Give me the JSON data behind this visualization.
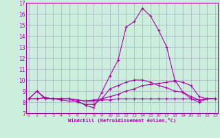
{
  "title": "",
  "xlabel": "Windchill (Refroidissement éolien,°C)",
  "bg_color": "#cceedd",
  "grid_color": "#aaaacc",
  "line_color": "#aa00aa",
  "x_min": 0,
  "x_max": 23,
  "y_min": 7,
  "y_max": 17,
  "series": [
    [
      8.3,
      9.0,
      8.3,
      8.3,
      8.2,
      8.1,
      8.1,
      7.7,
      7.5,
      8.9,
      10.4,
      11.8,
      14.8,
      15.3,
      16.5,
      15.8,
      14.5,
      13.0,
      10.0,
      8.9,
      8.3,
      8.0,
      8.3,
      8.3
    ],
    [
      8.3,
      9.0,
      8.4,
      8.3,
      8.3,
      8.3,
      8.0,
      7.8,
      7.8,
      8.3,
      9.2,
      9.5,
      9.8,
      10.0,
      10.0,
      9.8,
      9.5,
      9.3,
      9.0,
      8.9,
      8.5,
      8.2,
      8.3,
      8.3
    ],
    [
      8.3,
      8.3,
      8.4,
      8.3,
      8.3,
      8.3,
      8.2,
      8.1,
      8.1,
      8.2,
      8.2,
      8.3,
      8.3,
      8.3,
      8.3,
      8.3,
      8.3,
      8.3,
      8.3,
      8.3,
      8.3,
      8.2,
      8.3,
      8.3
    ],
    [
      8.3,
      8.3,
      8.4,
      8.3,
      8.3,
      8.3,
      8.2,
      8.1,
      8.2,
      8.3,
      8.5,
      8.7,
      9.0,
      9.2,
      9.5,
      9.6,
      9.7,
      9.8,
      9.9,
      9.8,
      9.5,
      8.5,
      8.3,
      8.3
    ]
  ]
}
